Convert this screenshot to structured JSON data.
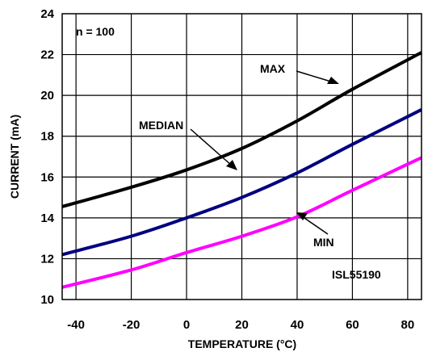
{
  "chart_data": {
    "type": "line",
    "title": "",
    "xlabel": "TEMPERATURE (°C)",
    "ylabel": "CURRENT (mA)",
    "xlim": [
      -45,
      85
    ],
    "ylim": [
      10,
      24
    ],
    "xticks": [
      -40,
      -20,
      0,
      20,
      40,
      60,
      80
    ],
    "yticks": [
      10,
      12,
      14,
      16,
      18,
      20,
      22,
      24
    ],
    "grid": true,
    "series": [
      {
        "name": "MAX",
        "color": "#000000",
        "x": [
          -45,
          -20,
          0,
          20,
          40,
          60,
          85
        ],
        "y": [
          14.55,
          15.5,
          16.35,
          17.4,
          18.75,
          20.3,
          22.1
        ]
      },
      {
        "name": "MEDIAN",
        "color": "#000080",
        "x": [
          -45,
          -20,
          0,
          20,
          40,
          60,
          85
        ],
        "y": [
          12.2,
          13.1,
          14.0,
          15.0,
          16.2,
          17.6,
          19.3
        ]
      },
      {
        "name": "MIN",
        "color": "#ff00ff",
        "x": [
          -45,
          -20,
          0,
          20,
          40,
          60,
          85
        ],
        "y": [
          10.6,
          11.45,
          12.3,
          13.1,
          14.05,
          15.35,
          16.95
        ]
      }
    ],
    "annotations": [
      {
        "text": "n = 100"
      },
      {
        "text": "ISL55190"
      }
    ]
  }
}
